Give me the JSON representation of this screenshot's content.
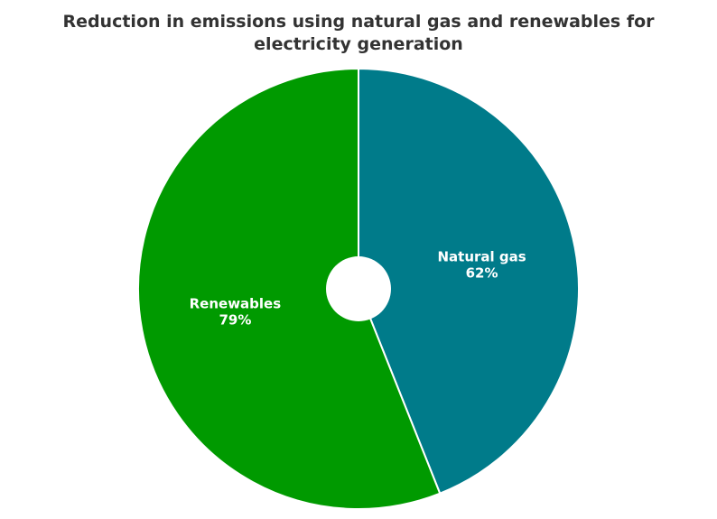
{
  "chart_data": {
    "type": "pie",
    "title": "Reduction in emissions using natural gas and renewables for electricity generation",
    "categories": [
      "Natural gas",
      "Renewables"
    ],
    "values": [
      62,
      79
    ],
    "value_labels": [
      "62%",
      "79%"
    ],
    "colors": [
      "#007b8a",
      "#009a00"
    ]
  }
}
